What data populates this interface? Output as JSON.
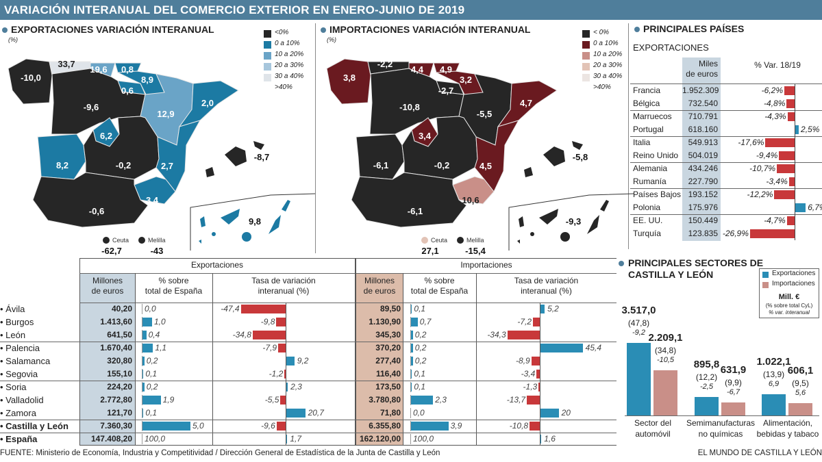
{
  "title": "VARIACIÓN INTERANUAL DEL COMERCIO EXTERIOR EN ENERO-JUNIO DE 2019",
  "colors": {
    "accent": "#4f7e9b",
    "positive_bar": "#2a8db5",
    "negative_bar": "#c8383a",
    "exports_column_bg": "#c9d6e0",
    "imports_column_bg": "#dcbcaa"
  },
  "maps": {
    "exports": {
      "title": "EXPORTACIONES VARIACIÓN INTERANUAL",
      "unit": "(%)",
      "legend": [
        {
          "label": "<0%",
          "color": "#262626"
        },
        {
          "label": "0 a 10%",
          "color": "#1c7aa3"
        },
        {
          "label": "10 a 20%",
          "color": "#6aa4c7"
        },
        {
          "label": "20 a 30%",
          "color": "#a7c6dc"
        },
        {
          "label": "30 a 40%",
          "color": "#dfe4e9"
        },
        {
          "label": ">40%",
          "color": "#ffffff"
        }
      ],
      "regions": {
        "galicia": "-10,0",
        "asturias": "33,7",
        "cantabria": "19,6",
        "pais_vasco": "0,8",
        "navarra": "8,9",
        "la_rioja": "0,6",
        "castilla_y_leon": "-9,6",
        "aragon": "12,9",
        "cataluna": "2,0",
        "madrid": "6,2",
        "extremadura": "8,2",
        "castilla_la_mancha": "-0,2",
        "valencia": "2,7",
        "murcia": "3,4",
        "andalucia": "-0,6",
        "baleares": "-8,7",
        "canarias": "9,8"
      },
      "ceuta": {
        "label": "Ceuta",
        "value": "-62,7"
      },
      "melilla": {
        "label": "Melilla",
        "value": "-43"
      }
    },
    "imports": {
      "title": "IMPORTACIONES VARIACIÓN INTERANUAL",
      "unit": "(%)",
      "legend": [
        {
          "label": "< 0%",
          "color": "#262626"
        },
        {
          "label": "0 a 10%",
          "color": "#6a1a20"
        },
        {
          "label": "10 a 20%",
          "color": "#c98f88"
        },
        {
          "label": "20 a 30%",
          "color": "#e2c3b6"
        },
        {
          "label": "30 a 40%",
          "color": "#ece5e2"
        },
        {
          "label": ">40%",
          "color": "#ffffff"
        }
      ],
      "regions": {
        "galicia": "3,8",
        "asturias": "-2,2",
        "cantabria": "4,4",
        "pais_vasco": "4,9",
        "navarra": "3,2",
        "la_rioja": "-2,7",
        "castilla_y_leon": "-10,8",
        "aragon": "-5,5",
        "cataluna": "4,7",
        "madrid": "3,4",
        "extremadura": "-6,1",
        "castilla_la_mancha": "-0,2",
        "valencia": "4,5",
        "murcia": "10,6",
        "andalucia": "-6,1",
        "baleares": "-5,8",
        "canarias": "-9,3"
      },
      "ceuta": {
        "label": "Ceuta",
        "value": "27,1"
      },
      "melilla": {
        "label": "Melilla",
        "value": "-15,4"
      }
    }
  },
  "provinces_table": {
    "exports_header": "Exportaciones",
    "imports_header": "Importaciones",
    "col_millones": [
      "Millones",
      "de euros"
    ],
    "col_pct": [
      "% sobre",
      "total de España"
    ],
    "col_tasa": [
      "Tasa de variación",
      "interanual (%)"
    ],
    "rows": [
      {
        "name": "Ávila",
        "exp": {
          "mill": "40,20",
          "pct": "0,0",
          "tasa": "-47,4"
        },
        "imp": {
          "mill": "89,50",
          "pct": "0,1",
          "tasa": "5,2"
        }
      },
      {
        "name": "Burgos",
        "exp": {
          "mill": "1.413,60",
          "pct": "1,0",
          "tasa": "-9,8"
        },
        "imp": {
          "mill": "1.130,90",
          "pct": "0,7",
          "tasa": "-7,2"
        }
      },
      {
        "name": "León",
        "exp": {
          "mill": "641,50",
          "pct": "0,4",
          "tasa": "-34,8"
        },
        "imp": {
          "mill": "345,30",
          "pct": "0,2",
          "tasa": "-34,3"
        }
      },
      {
        "name": "Palencia",
        "exp": {
          "mill": "1.670,40",
          "pct": "1,1",
          "tasa": "-7,9"
        },
        "imp": {
          "mill": "370,20",
          "pct": "0,2",
          "tasa": "45,4"
        }
      },
      {
        "name": "Salamanca",
        "exp": {
          "mill": "320,80",
          "pct": "0,2",
          "tasa": "9,2"
        },
        "imp": {
          "mill": "277,40",
          "pct": "0,2",
          "tasa": "-8,9"
        }
      },
      {
        "name": "Segovia",
        "exp": {
          "mill": "155,10",
          "pct": "0,1",
          "tasa": "-1,2"
        },
        "imp": {
          "mill": "116,40",
          "pct": "0,1",
          "tasa": "-3,4"
        }
      },
      {
        "name": "Soria",
        "exp": {
          "mill": "224,20",
          "pct": "0,2",
          "tasa": "2,3"
        },
        "imp": {
          "mill": "173,50",
          "pct": "0,1",
          "tasa": "-1,3"
        }
      },
      {
        "name": "Valladolid",
        "exp": {
          "mill": "2.772,80",
          "pct": "1,9",
          "tasa": "-5,5"
        },
        "imp": {
          "mill": "3.780,80",
          "pct": "2,3",
          "tasa": "-13,7"
        }
      },
      {
        "name": "Zamora",
        "exp": {
          "mill": "121,70",
          "pct": "0,1",
          "tasa": "20,7"
        },
        "imp": {
          "mill": "71,80",
          "pct": "0,0",
          "tasa": "20"
        }
      },
      {
        "name": "Castilla y León",
        "exp": {
          "mill": "7.360,30",
          "pct": "5,0",
          "tasa": "-9,6"
        },
        "imp": {
          "mill": "6.355,80",
          "pct": "3,9",
          "tasa": "-10,8"
        }
      },
      {
        "name": "España",
        "exp": {
          "mill": "147.408,20",
          "pct": "100,0",
          "tasa": "1,7"
        },
        "imp": {
          "mill": "162.120,00",
          "pct": "100,0",
          "tasa": "1,6"
        }
      }
    ]
  },
  "chart_data": [
    {
      "type": "bar",
      "title": "PRINCIPALES PAÍSES",
      "subtitle": "EXPORTACIONES",
      "col_value": [
        "Miles",
        "de euros"
      ],
      "col_var": "% Var. 18/19",
      "rows": [
        {
          "country": "Francia",
          "value": "1.952.309",
          "var": "-6,2%"
        },
        {
          "country": "Bélgica",
          "value": "732.540",
          "var": "-4,8%"
        },
        {
          "country": "Marruecos",
          "value": "710.791",
          "var": "-4,3%"
        },
        {
          "country": "Portugal",
          "value": "618.160",
          "var": "2,5%"
        },
        {
          "country": "Italia",
          "value": "549.913",
          "var": "-17,6%"
        },
        {
          "country": "Reino Unido",
          "value": "504.019",
          "var": "-9,4%"
        },
        {
          "country": "Alemania",
          "value": "434.246",
          "var": "-10,7%"
        },
        {
          "country": "Rumanía",
          "value": "227.790",
          "var": "-3,4%"
        },
        {
          "country": "Países Bajos",
          "value": "193.152",
          "var": "-12,2%"
        },
        {
          "country": "Polonia",
          "value": "175.976",
          "var": "6,7%"
        },
        {
          "country": "EE. UU.",
          "value": "150.449",
          "var": "-4,7%"
        },
        {
          "country": "Turquía",
          "value": "123.835",
          "var": "-26,9%"
        }
      ]
    },
    {
      "type": "bar",
      "title": [
        "PRINCIPALES SECTORES DE",
        "CASTILLA Y LEÓN"
      ],
      "legend": {
        "series": [
          {
            "name": "Exportaciones",
            "color": "#2a8db5"
          },
          {
            "name": "Importaciones",
            "color": "#c98f88"
          }
        ],
        "unit": "Mill. €",
        "note1": "(% sobre total CyL)",
        "note2": "% var. interanual"
      },
      "categories": [
        {
          "name": [
            "Sector del",
            "automóvil"
          ],
          "exp": {
            "value": "3.517,0",
            "share": "(47,8)",
            "var": "-9,2"
          },
          "imp": {
            "value": "2.209,1",
            "share": "(34,8)",
            "var": "-10,5"
          }
        },
        {
          "name": [
            "Semimanufacturas",
            "no químicas"
          ],
          "exp": {
            "value": "895,8",
            "share": "(12,2)",
            "var": "-2,5"
          },
          "imp": {
            "value": "631,9",
            "share": "(9,9)",
            "var": "-6,7"
          }
        },
        {
          "name": [
            "Alimentación,",
            "bebidas y tabaco"
          ],
          "exp": {
            "value": "1.022,1",
            "share": "(13,9)",
            "var": "6,9"
          },
          "imp": {
            "value": "606,1",
            "share": "(9,5)",
            "var": "5,6"
          }
        }
      ]
    }
  ],
  "footer": {
    "source": "FUENTE: Ministerio de Economía, Industria y Competitividad / Dirección General de Estadística de la Junta de Castilla y León",
    "credit": "EL MUNDO DE CASTILLA Y LEÓN"
  }
}
